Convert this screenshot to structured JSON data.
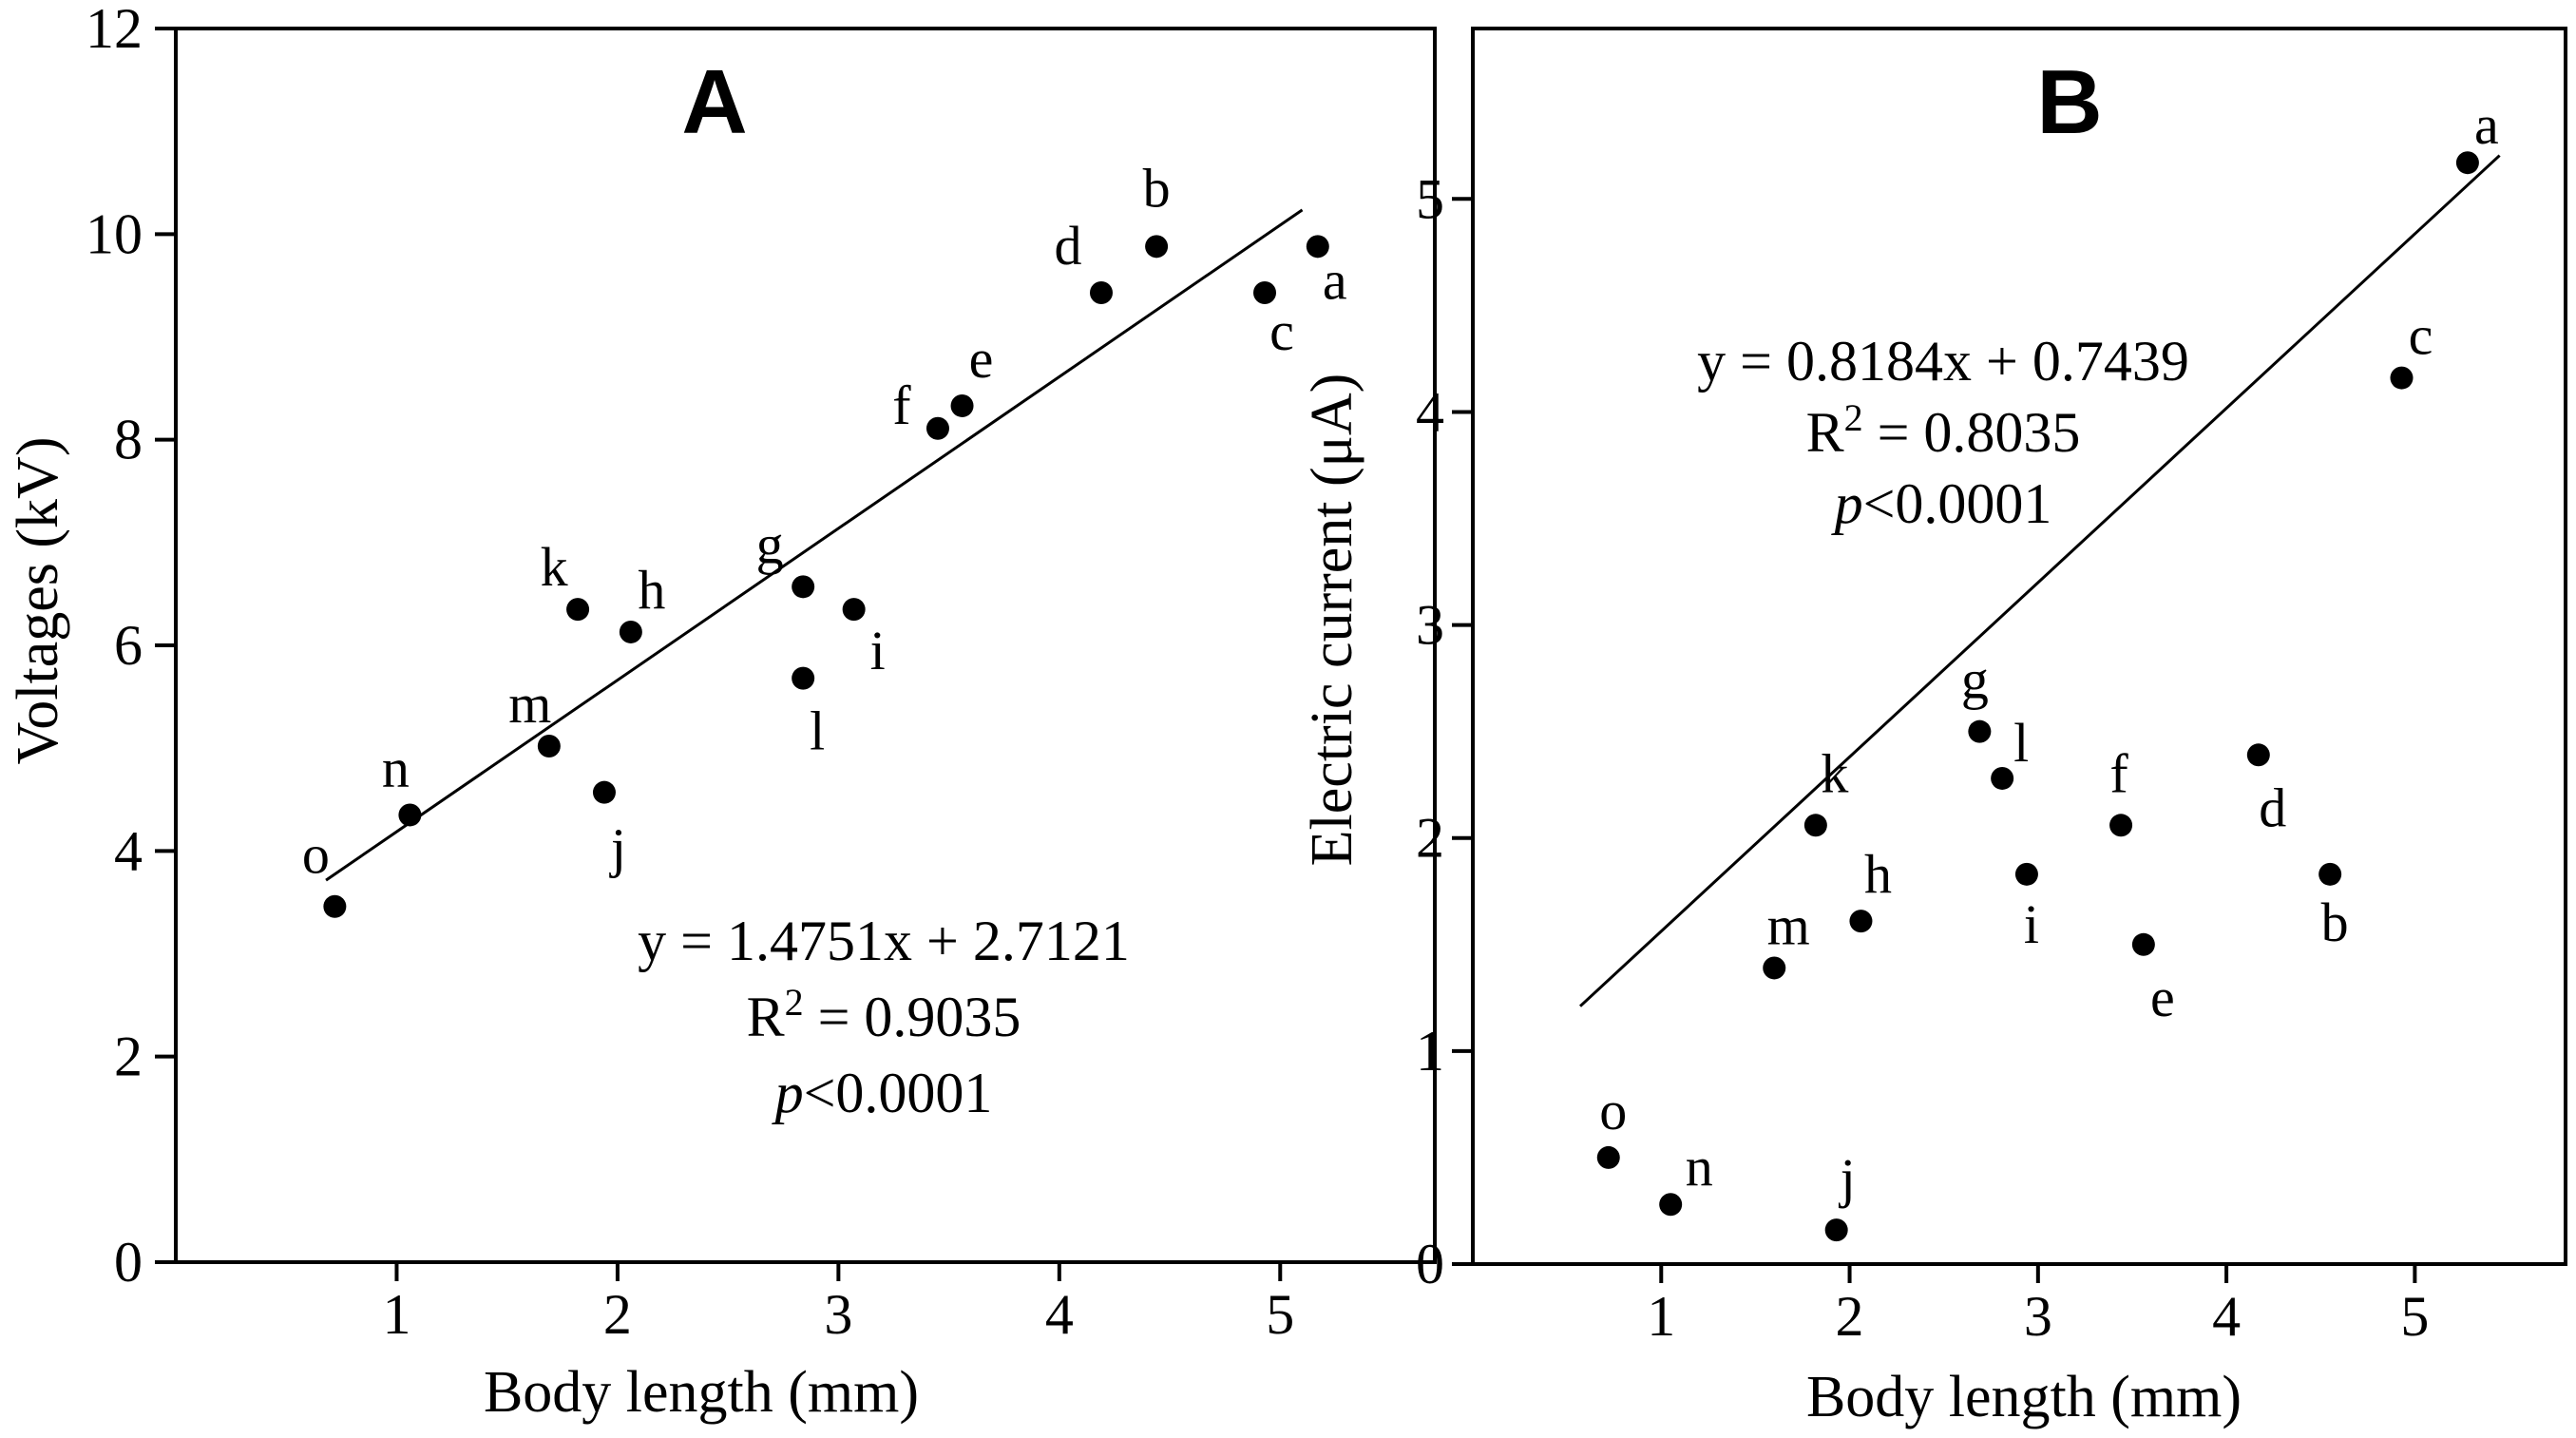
{
  "chart_data": [
    {
      "type": "scatter",
      "panel": "A",
      "title": "A",
      "xlabel": "Body length (mm)",
      "ylabel": "Voltages (kV)",
      "xlim": [
        0,
        5.7
      ],
      "ylim": [
        0,
        12
      ],
      "xticks": [
        "1",
        "2",
        "3",
        "4",
        "5"
      ],
      "yticks": [
        "0",
        "2",
        "4",
        "6",
        "8",
        "10",
        "12"
      ],
      "points": [
        {
          "label": "a",
          "x": 5.17,
          "y": 9.88
        },
        {
          "label": "b",
          "x": 4.44,
          "y": 9.88
        },
        {
          "label": "c",
          "x": 4.93,
          "y": 9.43
        },
        {
          "label": "d",
          "x": 4.19,
          "y": 9.43
        },
        {
          "label": "e",
          "x": 3.56,
          "y": 8.33
        },
        {
          "label": "f",
          "x": 3.45,
          "y": 8.11
        },
        {
          "label": "g",
          "x": 2.84,
          "y": 6.57
        },
        {
          "label": "h",
          "x": 2.06,
          "y": 6.13
        },
        {
          "label": "i",
          "x": 3.07,
          "y": 6.35
        },
        {
          "label": "j",
          "x": 1.94,
          "y": 4.57
        },
        {
          "label": "k",
          "x": 1.82,
          "y": 6.35
        },
        {
          "label": "l",
          "x": 2.84,
          "y": 5.68
        },
        {
          "label": "m",
          "x": 1.69,
          "y": 5.02
        },
        {
          "label": "n",
          "x": 1.06,
          "y": 4.35
        },
        {
          "label": "o",
          "x": 0.72,
          "y": 3.46
        }
      ],
      "fit": {
        "slope": 1.4751,
        "intercept": 2.7121,
        "x_range": [
          0.68,
          5.1
        ]
      },
      "equation": [
        "y = 1.4751x + 2.7121",
        "R",
        "2",
        " = 0.9035",
        "p",
        "<0.0001"
      ]
    },
    {
      "type": "scatter",
      "panel": "B",
      "title": "B",
      "xlabel": "Body length (mm)",
      "ylabel": "Electric current (μA)",
      "xlim": [
        0,
        5.8
      ],
      "ylim": [
        0,
        5.8
      ],
      "xticks": [
        "1",
        "2",
        "3",
        "4",
        "5"
      ],
      "yticks": [
        "0",
        "1",
        "2",
        "3",
        "4",
        "5"
      ],
      "points": [
        {
          "label": "a",
          "x": 5.28,
          "y": 5.17
        },
        {
          "label": "b",
          "x": 4.55,
          "y": 1.83
        },
        {
          "label": "c",
          "x": 4.93,
          "y": 4.16
        },
        {
          "label": "d",
          "x": 4.17,
          "y": 2.39
        },
        {
          "label": "e",
          "x": 3.56,
          "y": 1.5
        },
        {
          "label": "f",
          "x": 3.44,
          "y": 2.06
        },
        {
          "label": "g",
          "x": 2.69,
          "y": 2.5
        },
        {
          "label": "h",
          "x": 2.06,
          "y": 1.61
        },
        {
          "label": "i",
          "x": 2.94,
          "y": 1.83
        },
        {
          "label": "j",
          "x": 1.93,
          "y": 0.16
        },
        {
          "label": "k",
          "x": 1.82,
          "y": 2.06
        },
        {
          "label": "l",
          "x": 2.81,
          "y": 2.28
        },
        {
          "label": "m",
          "x": 1.6,
          "y": 1.39
        },
        {
          "label": "n",
          "x": 1.05,
          "y": 0.28
        },
        {
          "label": "o",
          "x": 0.72,
          "y": 0.5
        }
      ],
      "fit": {
        "slope": 0.8184,
        "intercept": 0.7439,
        "x_range": [
          0.57,
          5.45
        ]
      },
      "equation": [
        "y = 0.8184x + 0.7439",
        "R",
        "2",
        " = 0.8035",
        "p",
        "<0.0001"
      ]
    }
  ]
}
